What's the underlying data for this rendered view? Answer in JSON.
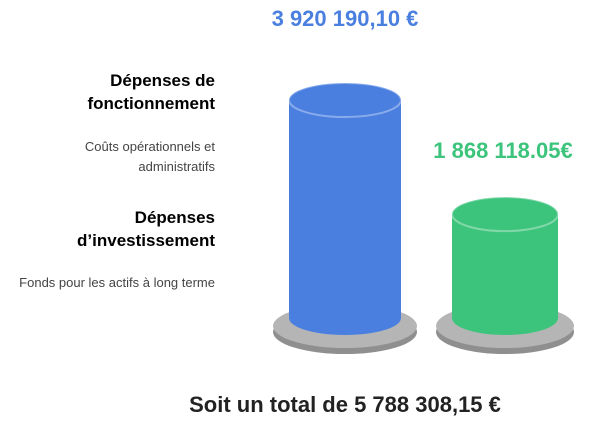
{
  "chart_data": {
    "type": "bar",
    "categories": [
      "Dépenses de fonctionnement",
      "Dépenses d’investissement"
    ],
    "descriptions": [
      "Coûts opérationnels et administratifs",
      "Fonds pour les actifs à long terme"
    ],
    "values": [
      3920190.1,
      1868118.05
    ],
    "value_labels": [
      "3 920 190,10 €",
      "1 868 118.05€"
    ],
    "colors": [
      "#4a7fe0",
      "#3cc47c"
    ],
    "total": "Soit un total de 5 788 308,15 €"
  }
}
